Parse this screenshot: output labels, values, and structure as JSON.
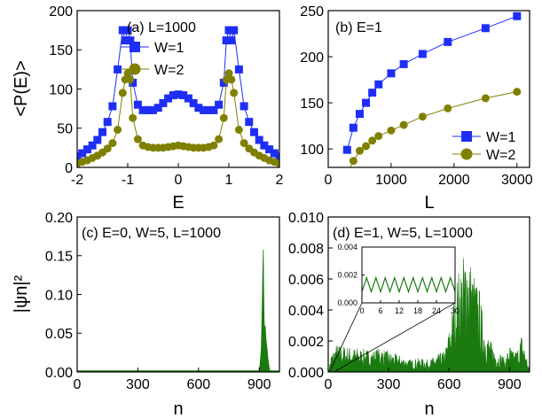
{
  "colors": {
    "blue": "#1f2ef5",
    "olive": "#808000",
    "green": "#1a7a10"
  },
  "chart_data": [
    {
      "panel": "a",
      "type": "line",
      "label": "(a) L=1000",
      "xlabel": "E",
      "ylabel": "<P(E)>",
      "xlim": [
        -2,
        2
      ],
      "ylim": [
        0,
        200
      ],
      "xticks": [
        "-2",
        "-1",
        "0",
        "1",
        "2"
      ],
      "yticks": [
        "0",
        "50",
        "100",
        "150",
        "200"
      ],
      "legend_position": "top-center",
      "x": [
        -2.0,
        -1.9,
        -1.8,
        -1.7,
        -1.6,
        -1.5,
        -1.4,
        -1.3,
        -1.2,
        -1.1,
        -1.05,
        -1.0,
        -0.95,
        -0.9,
        -0.8,
        -0.7,
        -0.6,
        -0.5,
        -0.4,
        -0.3,
        -0.2,
        -0.1,
        0.0,
        0.1,
        0.2,
        0.3,
        0.4,
        0.5,
        0.6,
        0.7,
        0.8,
        0.9,
        0.95,
        1.0,
        1.05,
        1.1,
        1.2,
        1.3,
        1.4,
        1.5,
        1.6,
        1.7,
        1.8,
        1.9,
        2.0
      ],
      "series": [
        {
          "name": "W=1",
          "values": [
            14,
            18,
            23,
            28,
            35,
            45,
            58,
            78,
            125,
            175,
            162,
            175,
            162,
            108,
            80,
            73,
            73,
            73,
            76,
            82,
            88,
            92,
            93,
            92,
            88,
            82,
            76,
            73,
            73,
            73,
            80,
            108,
            162,
            175,
            162,
            175,
            125,
            78,
            58,
            45,
            35,
            28,
            23,
            18,
            14
          ]
        },
        {
          "name": "W=2",
          "values": [
            5,
            7,
            9,
            12,
            15,
            19,
            24,
            31,
            48,
            95,
            112,
            120,
            112,
            63,
            36,
            28,
            26,
            25,
            25,
            25,
            26,
            27,
            28,
            27,
            26,
            25,
            25,
            25,
            26,
            28,
            36,
            63,
            112,
            120,
            112,
            95,
            48,
            31,
            24,
            19,
            15,
            12,
            9,
            7,
            5
          ]
        }
      ]
    },
    {
      "panel": "b",
      "type": "line",
      "label": "(b) E=1",
      "xlabel": "L",
      "ylabel": "",
      "xlim": [
        0,
        3200
      ],
      "ylim": [
        80,
        250
      ],
      "xticks": [
        "0",
        "1000",
        "2000",
        "3000"
      ],
      "yticks": [
        "100",
        "150",
        "200",
        "250"
      ],
      "legend_position": "bottom-right",
      "x": [
        300,
        400,
        500,
        600,
        700,
        800,
        1000,
        1200,
        1500,
        1900,
        2500,
        3000
      ],
      "series": [
        {
          "name": "W=1",
          "values": [
            99,
            123,
            138,
            150,
            161,
            170,
            182,
            192,
            203,
            216,
            231,
            244
          ]
        },
        {
          "name": "W=2",
          "values": [
            73,
            87,
            98,
            103,
            109,
            114,
            120,
            126,
            135,
            144,
            155,
            162
          ]
        }
      ]
    },
    {
      "panel": "c",
      "type": "area",
      "label": "(c) E=0, W=5, L=1000",
      "xlabel": "n",
      "ylabel": "|ψn|²",
      "xlim": [
        0,
        1000
      ],
      "ylim": [
        0,
        0.2
      ],
      "xticks": [
        "0",
        "300",
        "600",
        "900"
      ],
      "yticks": [
        "0.00",
        "0.05",
        "0.10",
        "0.15",
        "0.20"
      ],
      "peaks": [
        [
          900,
          0.0
        ],
        [
          905,
          0.012
        ],
        [
          910,
          0.03
        ],
        [
          914,
          0.075
        ],
        [
          917,
          0.12
        ],
        [
          920,
          0.158
        ],
        [
          922,
          0.11
        ],
        [
          924,
          0.07
        ],
        [
          927,
          0.045
        ],
        [
          930,
          0.06
        ],
        [
          934,
          0.04
        ],
        [
          938,
          0.032
        ],
        [
          942,
          0.02
        ],
        [
          946,
          0.012
        ],
        [
          950,
          0.004
        ],
        [
          955,
          0.0
        ]
      ]
    },
    {
      "panel": "d",
      "type": "area",
      "label": "(d) E=1, W=5, L=1000",
      "xlabel": "n",
      "ylabel": "",
      "xlim": [
        0,
        1000
      ],
      "ylim": [
        0,
        0.01
      ],
      "xticks": [
        "0",
        "300",
        "600",
        "900"
      ],
      "yticks": [
        "0.000",
        "0.002",
        "0.004",
        "0.006",
        "0.008",
        "0.010"
      ],
      "envelope": [
        [
          0,
          0.0
        ],
        [
          15,
          0.0012
        ],
        [
          40,
          0.0018
        ],
        [
          80,
          0.0017
        ],
        [
          120,
          0.0016
        ],
        [
          170,
          0.0015
        ],
        [
          220,
          0.0014
        ],
        [
          260,
          0.0016
        ],
        [
          300,
          0.0013
        ],
        [
          350,
          0.0011
        ],
        [
          400,
          0.0008
        ],
        [
          450,
          0.0009
        ],
        [
          500,
          0.0008
        ],
        [
          540,
          0.0011
        ],
        [
          580,
          0.0014
        ],
        [
          610,
          0.0035
        ],
        [
          630,
          0.0055
        ],
        [
          650,
          0.0068
        ],
        [
          670,
          0.0075
        ],
        [
          690,
          0.0088
        ],
        [
          710,
          0.0072
        ],
        [
          730,
          0.0062
        ],
        [
          750,
          0.0055
        ],
        [
          770,
          0.0035
        ],
        [
          800,
          0.0022
        ],
        [
          830,
          0.0014
        ],
        [
          860,
          0.0012
        ],
        [
          880,
          0.0008
        ],
        [
          900,
          0.0018
        ],
        [
          920,
          0.0013
        ],
        [
          940,
          0.0015
        ],
        [
          960,
          0.0025
        ],
        [
          975,
          0.0017
        ],
        [
          1000,
          0.0
        ]
      ],
      "inset": {
        "xlim": [
          0,
          30
        ],
        "ylim": [
          0,
          0.004
        ],
        "xticks": [
          "0",
          "6",
          "12",
          "18",
          "24",
          "30"
        ],
        "yticks": [
          "0.000",
          "0.002",
          "0.004"
        ],
        "period": 3,
        "low": 0.0008,
        "high": 0.0018
      }
    }
  ]
}
